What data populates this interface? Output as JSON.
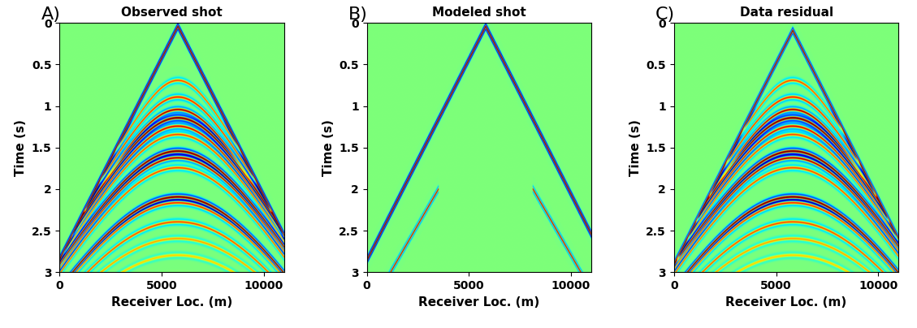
{
  "chart_data": [
    {
      "type": "image",
      "panel_label": "A)",
      "title": "Observed shot",
      "x_label": "Receiver Loc. (m)",
      "y_label": "Time (s)",
      "xlim": [
        0,
        11000
      ],
      "ylim": [
        3,
        0
      ],
      "xticks": [
        0,
        5000,
        10000
      ],
      "yticks": [
        0,
        0.5,
        1,
        1.5,
        2,
        2.5,
        3
      ],
      "source_x": 5800,
      "events": [
        {
          "kind": "direct",
          "t0": 0.05,
          "velocity": 2070,
          "amplitude": 1.0
        },
        {
          "kind": "reflection",
          "t0": 0.7,
          "velocity": 2200,
          "amplitude": 0.35
        },
        {
          "kind": "reflection",
          "t0": 0.9,
          "velocity": 2250,
          "amplitude": 0.4
        },
        {
          "kind": "reflection",
          "t0": 1.05,
          "velocity": 2250,
          "amplitude": 0.5
        },
        {
          "kind": "reflection",
          "t0": 1.15,
          "velocity": 2300,
          "amplitude": 0.7
        },
        {
          "kind": "reflection",
          "t0": 1.25,
          "velocity": 2300,
          "amplitude": 0.45
        },
        {
          "kind": "reflection",
          "t0": 1.35,
          "velocity": 2300,
          "amplitude": 0.35
        },
        {
          "kind": "reflection",
          "t0": 1.55,
          "velocity": 2350,
          "amplitude": 0.7
        },
        {
          "kind": "reflection",
          "t0": 1.63,
          "velocity": 2350,
          "amplitude": 0.5
        },
        {
          "kind": "reflection",
          "t0": 1.75,
          "velocity": 2350,
          "amplitude": 0.35
        },
        {
          "kind": "reflection",
          "t0": 2.1,
          "velocity": 2400,
          "amplitude": 0.7
        },
        {
          "kind": "reflection",
          "t0": 2.17,
          "velocity": 2400,
          "amplitude": 0.4
        },
        {
          "kind": "reflection",
          "t0": 2.4,
          "velocity": 2450,
          "amplitude": 0.35
        },
        {
          "kind": "reflection",
          "t0": 2.6,
          "velocity": 2500,
          "amplitude": 0.25
        },
        {
          "kind": "reflection",
          "t0": 2.8,
          "velocity": 2500,
          "amplitude": 0.2
        }
      ]
    },
    {
      "type": "image",
      "panel_label": "B)",
      "title": "Modeled shot",
      "x_label": "Receiver Loc. (m)",
      "y_label": "Time (s)",
      "xlim": [
        0,
        11000
      ],
      "ylim": [
        3,
        0
      ],
      "xticks": [
        0,
        5000,
        10000
      ],
      "yticks": [
        0,
        0.5,
        1,
        1.5,
        2,
        2.5,
        3
      ],
      "source_x": 5800,
      "events": [
        {
          "kind": "direct",
          "t0": 0.05,
          "velocity": 2070,
          "amplitude": 1.0
        },
        {
          "kind": "refraction",
          "t0": 2.0,
          "velocity": 2350,
          "min_offset": 2300,
          "amplitude": 0.5
        }
      ]
    },
    {
      "type": "image",
      "panel_label": "C)",
      "title": "Data residual",
      "x_label": "Receiver Loc. (m)",
      "y_label": "Time (s)",
      "xlim": [
        0,
        11000
      ],
      "ylim": [
        3,
        0
      ],
      "xticks": [
        0,
        5000,
        10000
      ],
      "yticks": [
        0,
        0.5,
        1,
        1.5,
        2,
        2.5,
        3
      ],
      "source_x": 5800,
      "events": [
        {
          "kind": "direct",
          "t0": 0.1,
          "velocity": 2070,
          "amplitude": 0.8
        },
        {
          "kind": "reflection",
          "t0": 0.7,
          "velocity": 2200,
          "amplitude": 0.35
        },
        {
          "kind": "reflection",
          "t0": 0.9,
          "velocity": 2250,
          "amplitude": 0.4
        },
        {
          "kind": "reflection",
          "t0": 1.05,
          "velocity": 2250,
          "amplitude": 0.5
        },
        {
          "kind": "reflection",
          "t0": 1.15,
          "velocity": 2300,
          "amplitude": 0.7
        },
        {
          "kind": "reflection",
          "t0": 1.25,
          "velocity": 2300,
          "amplitude": 0.45
        },
        {
          "kind": "reflection",
          "t0": 1.35,
          "velocity": 2300,
          "amplitude": 0.35
        },
        {
          "kind": "reflection",
          "t0": 1.55,
          "velocity": 2350,
          "amplitude": 0.7
        },
        {
          "kind": "reflection",
          "t0": 1.63,
          "velocity": 2350,
          "amplitude": 0.5
        },
        {
          "kind": "reflection",
          "t0": 1.75,
          "velocity": 2350,
          "amplitude": 0.35
        },
        {
          "kind": "reflection",
          "t0": 2.1,
          "velocity": 2400,
          "amplitude": 0.7
        },
        {
          "kind": "reflection",
          "t0": 2.17,
          "velocity": 2400,
          "amplitude": 0.4
        },
        {
          "kind": "reflection",
          "t0": 2.4,
          "velocity": 2450,
          "amplitude": 0.35
        },
        {
          "kind": "reflection",
          "t0": 2.6,
          "velocity": 2500,
          "amplitude": 0.25
        },
        {
          "kind": "reflection",
          "t0": 2.8,
          "velocity": 2500,
          "amplitude": 0.2
        }
      ]
    }
  ]
}
